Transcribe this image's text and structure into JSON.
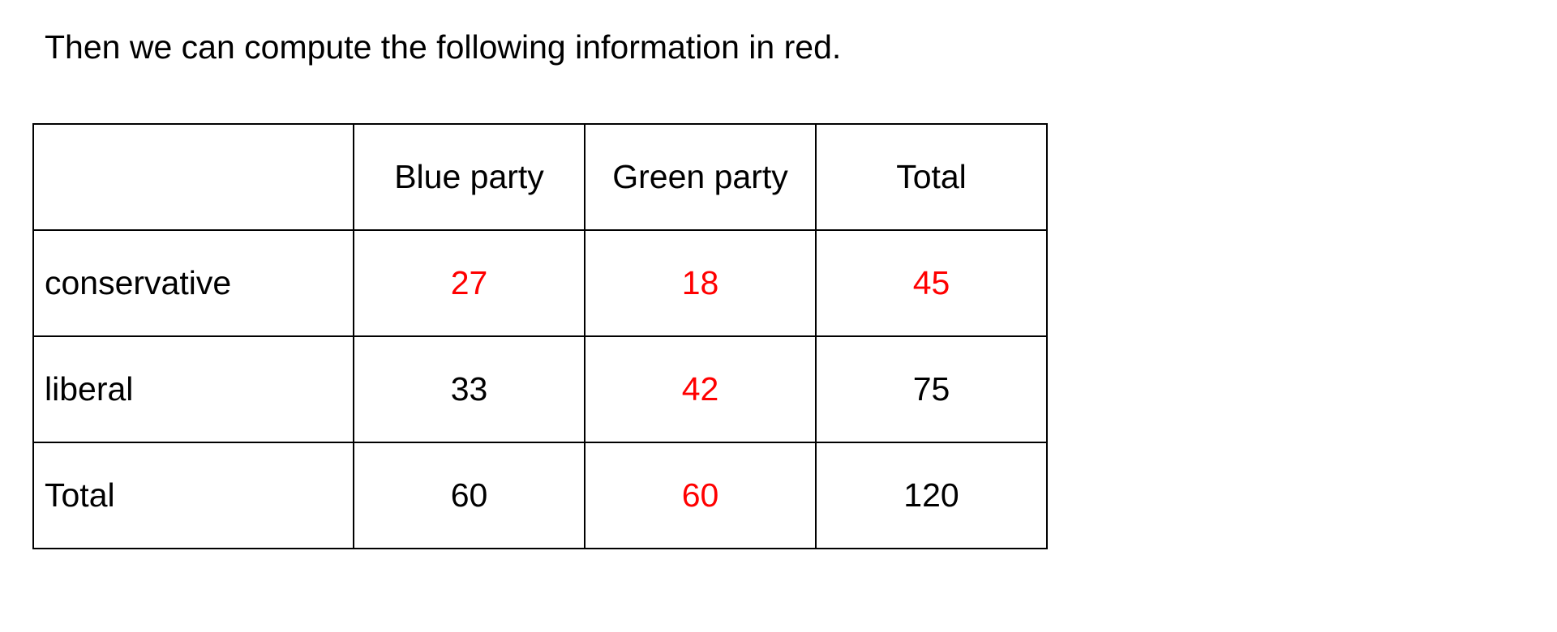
{
  "intro_text": "Then we can compute the following information in red.",
  "colors": {
    "computed": "#ff0000",
    "given": "#000000"
  },
  "table": {
    "headers": [
      "",
      "Blue party",
      "Green party",
      "Total"
    ],
    "rows": [
      {
        "label": "conservative",
        "blue": "27",
        "green": "18",
        "total": "45"
      },
      {
        "label": "liberal",
        "blue": "33",
        "green": "42",
        "total": "75"
      },
      {
        "label": "Total",
        "blue": "60",
        "green": "60",
        "total": "120"
      }
    ],
    "computed_cells": [
      "conservative.blue",
      "conservative.green",
      "conservative.total",
      "liberal.green",
      "total.green"
    ]
  }
}
